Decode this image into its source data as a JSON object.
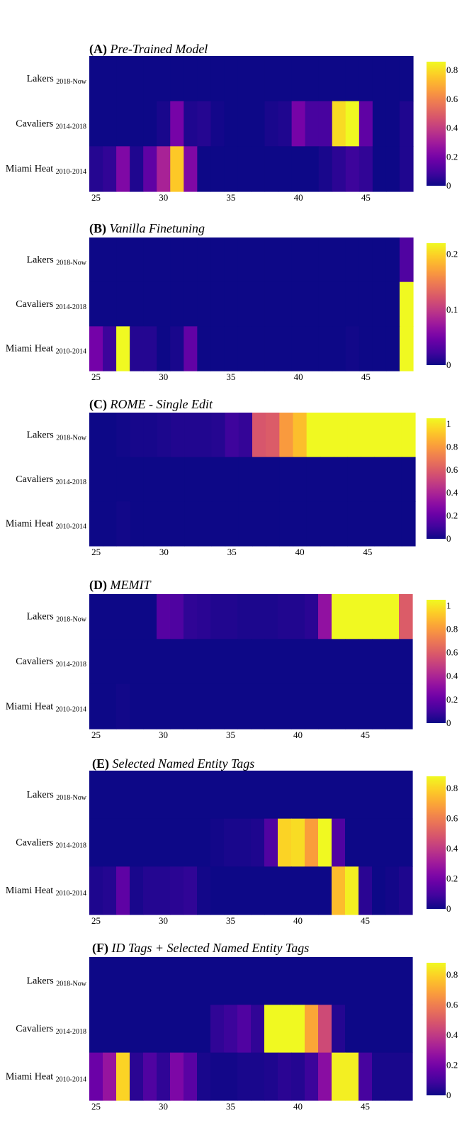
{
  "colorscale": [
    "#0d0887",
    "#46039f",
    "#7201a8",
    "#9c179e",
    "#bd3786",
    "#d8576b",
    "#ed7953",
    "#fb9f3a",
    "#fdca26",
    "#f0f921"
  ],
  "chart_data": [
    {
      "type": "heatmap",
      "title_bold": "(A)",
      "title_italic": "Pre-Trained Model",
      "rows": [
        {
          "name": "Lakers",
          "sub": "2018-Now"
        },
        {
          "name": "Cavaliers",
          "sub": "2014-2018"
        },
        {
          "name": "Miami Heat",
          "sub": "2010-2014"
        }
      ],
      "x_start": 24.5,
      "x_end": 48.5,
      "xticks": [
        "25",
        "30",
        "35",
        "40",
        "45"
      ],
      "zmax": 0.86,
      "colorbar_ticks": [
        "0",
        "0.2",
        "0.4",
        "0.6",
        "0.8"
      ],
      "colorbar_values": [
        0,
        0.2,
        0.4,
        0.6,
        0.8
      ],
      "z": [
        [
          0,
          0,
          0,
          0,
          0,
          0,
          0,
          0,
          0,
          0,
          0,
          0,
          0,
          0,
          0,
          0,
          0,
          0,
          0,
          0,
          0,
          0,
          0,
          0
        ],
        [
          0,
          0,
          0,
          0,
          0,
          0.02,
          0.2,
          0.03,
          0.04,
          0.01,
          0,
          0,
          0,
          0.02,
          0.03,
          0.2,
          0.1,
          0.1,
          0.8,
          0.86,
          0.15,
          0,
          0,
          0.03
        ],
        [
          0.04,
          0.06,
          0.22,
          0.03,
          0.15,
          0.32,
          0.76,
          0.22,
          0,
          0,
          0,
          0,
          0,
          0,
          0,
          0,
          0,
          0.02,
          0.05,
          0.08,
          0.06,
          0,
          0,
          0.03
        ]
      ]
    },
    {
      "type": "heatmap",
      "title_bold": "(B)",
      "title_italic": "Vanilla Finetuning",
      "rows": [
        {
          "name": "Lakers",
          "sub": "2018-Now"
        },
        {
          "name": "Cavaliers",
          "sub": "2014-2018"
        },
        {
          "name": "Miami Heat",
          "sub": "2010-2014"
        }
      ],
      "x_start": 24.5,
      "x_end": 48.5,
      "xticks": [
        "25",
        "30",
        "35",
        "40",
        "45"
      ],
      "zmax": 0.22,
      "colorbar_ticks": [
        "0",
        "0.1",
        "0.2"
      ],
      "colorbar_values": [
        0,
        0.1,
        0.2
      ],
      "z": [
        [
          0,
          0,
          0,
          0,
          0,
          0,
          0,
          0,
          0,
          0,
          0,
          0,
          0,
          0,
          0,
          0,
          0,
          0,
          0,
          0,
          0,
          0,
          0,
          0.03
        ],
        [
          0,
          0,
          0,
          0,
          0,
          0,
          0,
          0,
          0,
          0,
          0,
          0,
          0,
          0,
          0,
          0,
          0,
          0,
          0,
          0,
          0,
          0,
          0,
          0.22
        ],
        [
          0.05,
          0.02,
          0.22,
          0.01,
          0.01,
          0,
          0.005,
          0.04,
          0,
          0,
          0,
          0,
          0,
          0,
          0,
          0,
          0,
          0,
          0,
          0.002,
          0,
          0,
          0,
          0.22
        ]
      ]
    },
    {
      "type": "heatmap",
      "title_bold": "(C)",
      "title_italic": "ROME - Single Edit",
      "rows": [
        {
          "name": "Lakers",
          "sub": "2018-Now"
        },
        {
          "name": "Cavaliers",
          "sub": "2014-2018"
        },
        {
          "name": "Miami Heat",
          "sub": "2010-2014"
        }
      ],
      "x_start": 24.5,
      "x_end": 48.5,
      "xticks": [
        "25",
        "30",
        "35",
        "40",
        "45"
      ],
      "zmax": 1.05,
      "colorbar_ticks": [
        "0",
        "0.2",
        "0.4",
        "0.6",
        "0.8",
        "1"
      ],
      "colorbar_values": [
        0,
        0.2,
        0.4,
        0.6,
        0.8,
        1
      ],
      "z": [
        [
          0,
          0,
          0.01,
          0.02,
          0.02,
          0.03,
          0.04,
          0.04,
          0.04,
          0.05,
          0.1,
          0.08,
          0.58,
          0.6,
          0.8,
          0.9,
          1.05,
          1.05,
          1.05,
          1.05,
          1.05,
          1.05,
          1.05,
          1.05
        ],
        [
          0,
          0,
          0,
          0,
          0,
          0,
          0,
          0,
          0,
          0,
          0,
          0,
          0,
          0,
          0,
          0,
          0,
          0,
          0,
          0,
          0,
          0,
          0,
          0
        ],
        [
          0,
          0,
          0.01,
          0,
          0,
          0,
          0,
          0,
          0,
          0,
          0,
          0,
          0,
          0,
          0,
          0,
          0,
          0,
          0,
          0,
          0,
          0,
          0,
          0
        ]
      ]
    },
    {
      "type": "heatmap",
      "title_bold": "(D)",
      "title_italic": "MEMIT",
      "rows": [
        {
          "name": "Lakers",
          "sub": "2018-Now"
        },
        {
          "name": "Cavaliers",
          "sub": "2014-2018"
        },
        {
          "name": "Miami Heat",
          "sub": "2010-2014"
        }
      ],
      "x_start": 24.5,
      "x_end": 48.5,
      "xticks": [
        "25",
        "30",
        "35",
        "40",
        "45"
      ],
      "zmax": 1.05,
      "colorbar_ticks": [
        "0",
        "0.2",
        "0.4",
        "0.6",
        "0.8",
        "1"
      ],
      "colorbar_values": [
        0,
        0.2,
        0.4,
        0.6,
        0.8,
        1
      ],
      "z": [
        [
          0,
          0,
          0,
          0,
          0,
          0.16,
          0.14,
          0.07,
          0.06,
          0.04,
          0.04,
          0.03,
          0.03,
          0.03,
          0.04,
          0.04,
          0.06,
          0.32,
          1.05,
          1.05,
          1.05,
          1.05,
          1.05,
          0.6
        ],
        [
          0,
          0,
          0,
          0,
          0,
          0,
          0,
          0,
          0,
          0,
          0,
          0,
          0,
          0,
          0,
          0,
          0,
          0,
          0,
          0,
          0,
          0,
          0,
          0
        ],
        [
          0,
          0,
          0.01,
          0,
          0,
          0,
          0,
          0,
          0,
          0,
          0,
          0,
          0,
          0,
          0,
          0,
          0,
          0,
          0,
          0,
          0,
          0,
          0,
          0
        ]
      ]
    },
    {
      "type": "heatmap",
      "title_bold": "(E)",
      "title_italic": "Selected Named Entity Tags",
      "rows": [
        {
          "name": "Lakers",
          "sub": "2018-Now"
        },
        {
          "name": "Cavaliers",
          "sub": "2014-2018"
        },
        {
          "name": "Miami Heat",
          "sub": "2010-2014"
        }
      ],
      "x_start": 24.5,
      "x_end": 48.5,
      "xticks": [
        "25",
        "30",
        "35",
        "40",
        "45"
      ],
      "zmax": 0.88,
      "colorbar_ticks": [
        "0",
        "0.2",
        "0.4",
        "0.6",
        "0.8"
      ],
      "colorbar_values": [
        0,
        0.2,
        0.4,
        0.6,
        0.8
      ],
      "z": [
        [
          0,
          0,
          0,
          0,
          0,
          0,
          0,
          0,
          0,
          0,
          0,
          0,
          0,
          0,
          0,
          0,
          0,
          0,
          0,
          0,
          0,
          0,
          0,
          0
        ],
        [
          0,
          0,
          0,
          0,
          0,
          0,
          0,
          0,
          0,
          0.01,
          0.02,
          0.02,
          0.03,
          0.12,
          0.8,
          0.82,
          0.68,
          0.88,
          0.12,
          0,
          0,
          0,
          0,
          0
        ],
        [
          0.03,
          0.04,
          0.15,
          0.02,
          0.04,
          0.04,
          0.05,
          0.06,
          0.01,
          0,
          0,
          0,
          0,
          0,
          0,
          0,
          0,
          0,
          0.75,
          0.86,
          0.05,
          0,
          0.01,
          0.03
        ]
      ]
    },
    {
      "type": "heatmap",
      "title_bold": "(F)",
      "title_italic": "ID Tags + Selected Named Entity Tags",
      "rows": [
        {
          "name": "Lakers",
          "sub": "2018-Now"
        },
        {
          "name": "Cavaliers",
          "sub": "2014-2018"
        },
        {
          "name": "Miami Heat",
          "sub": "2010-2014"
        }
      ],
      "x_start": 24.5,
      "x_end": 48.5,
      "xticks": [
        "25",
        "30",
        "35",
        "40",
        "45"
      ],
      "zmax": 0.88,
      "colorbar_ticks": [
        "0",
        "0.2",
        "0.4",
        "0.6",
        "0.8"
      ],
      "colorbar_values": [
        0,
        0.2,
        0.4,
        0.6,
        0.8
      ],
      "z": [
        [
          0,
          0,
          0,
          0,
          0,
          0,
          0,
          0,
          0,
          0,
          0,
          0,
          0,
          0,
          0,
          0,
          0,
          0,
          0,
          0,
          0,
          0,
          0,
          0
        ],
        [
          0,
          0,
          0,
          0,
          0,
          0,
          0,
          0,
          0,
          0.06,
          0.08,
          0.12,
          0.06,
          0.88,
          0.88,
          0.88,
          0.7,
          0.45,
          0.04,
          0,
          0,
          0,
          0,
          0
        ],
        [
          0.18,
          0.28,
          0.8,
          0.05,
          0.12,
          0.06,
          0.22,
          0.14,
          0.02,
          0.01,
          0.01,
          0.02,
          0.02,
          0.03,
          0.05,
          0.04,
          0.08,
          0.25,
          0.86,
          0.86,
          0.1,
          0.02,
          0.02,
          0.02
        ]
      ]
    }
  ]
}
